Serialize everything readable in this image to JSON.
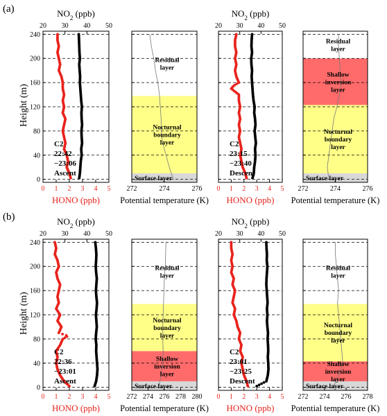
{
  "figure": {
    "panel_labels": [
      "(a)",
      "(b)"
    ],
    "colors": {
      "hono": "#e8231c",
      "no2": "#000000",
      "residual_layer": "#ffffff",
      "nocturnal_boundary_layer": "#ffff88",
      "shallow_inversion_layer": "#ff6b6b",
      "surface_layer": "#d8d8d8",
      "dashed_line": "#000000",
      "temperature_line": "#777777"
    }
  },
  "chart_data": [
    {
      "id": "a-ascent",
      "type": "line",
      "title": "",
      "panel_label": "(a)",
      "ylabel": "Height (m)",
      "ylim": [
        -5,
        245
      ],
      "yticks": [
        0,
        40,
        80,
        120,
        160,
        200,
        240
      ],
      "xlabel": "HONO (ppb)",
      "xlim": [
        0,
        5
      ],
      "xticks": [
        0,
        1,
        2,
        3,
        4,
        5
      ],
      "xlabel_top": "NO2 (ppb)",
      "xlim_top": [
        20,
        50
      ],
      "xticks_top": [
        20,
        30,
        40,
        50
      ],
      "annotation": [
        "C2",
        "22:42",
        "−23:06",
        "Ascent"
      ],
      "dashed_heights": [
        0,
        40,
        80,
        120,
        160,
        200,
        240
      ],
      "series": [
        {
          "name": "HONO",
          "axis": "bottom",
          "height": [
            2,
            10,
            20,
            30,
            40,
            50,
            60,
            70,
            80,
            90,
            100,
            110,
            120,
            130,
            140,
            150,
            160,
            170,
            180,
            190,
            200,
            210,
            220,
            230,
            240
          ],
          "values": [
            2.1,
            2.0,
            1.8,
            1.9,
            1.8,
            1.6,
            1.7,
            1.6,
            1.5,
            1.6,
            1.7,
            1.5,
            1.6,
            1.5,
            1.6,
            1.5,
            1.5,
            1.4,
            1.2,
            1.3,
            1.2,
            1.1,
            1.2,
            1.1,
            1.1
          ]
        },
        {
          "name": "NO2",
          "axis": "top",
          "height": [
            2,
            10,
            20,
            30,
            40,
            50,
            60,
            70,
            80,
            90,
            100,
            110,
            120,
            130,
            140,
            150,
            160,
            170,
            180,
            190,
            200,
            210,
            220,
            230,
            240
          ],
          "values": [
            36.5,
            36.8,
            37.0,
            37.2,
            37.6,
            37.4,
            37.8,
            37.6,
            37.5,
            37.8,
            37.6,
            37.5,
            37.7,
            37.4,
            37.2,
            37.0,
            36.8,
            36.9,
            36.7,
            36.5,
            36.8,
            36.6,
            36.5,
            36.4,
            36.3
          ]
        }
      ]
    },
    {
      "id": "a-ascent-layers",
      "type": "line",
      "title": "",
      "xlabel": "Potential temperature (K)",
      "xlim": [
        272,
        276
      ],
      "xticks": [
        272,
        274,
        276
      ],
      "ylim": [
        -5,
        245
      ],
      "dashed_heights": [
        0,
        40,
        80,
        120,
        160,
        200,
        240
      ],
      "layers": [
        {
          "name": "Surface layer",
          "bottom": -5,
          "top": 10,
          "kind": "surface_layer",
          "label": [
            "Surface layer"
          ]
        },
        {
          "name": "Nocturnal boundary layer",
          "bottom": 10,
          "top": 138,
          "kind": "nocturnal_boundary_layer",
          "label": [
            "Nocturnal",
            "boundary",
            "layer"
          ]
        },
        {
          "name": "Residual layer",
          "bottom": 138,
          "top": 245,
          "kind": "residual_layer",
          "label": [
            "Residual",
            "layer"
          ]
        }
      ],
      "series": [
        {
          "name": "Potential temperature",
          "height": [
            0,
            20,
            40,
            60,
            80,
            100,
            120,
            140,
            160,
            180,
            200,
            220,
            240
          ],
          "values": [
            274.55,
            274.3,
            274.1,
            273.9,
            273.8,
            273.8,
            273.75,
            273.7,
            273.6,
            273.45,
            273.35,
            273.2,
            273.1
          ]
        }
      ]
    },
    {
      "id": "a-descent",
      "type": "line",
      "title": "",
      "xlabel": "HONO (ppb)",
      "xlim": [
        0,
        5
      ],
      "xticks": [
        0,
        1,
        2,
        3,
        4,
        5
      ],
      "xlabel_top": "NO2 (ppb)",
      "xlim_top": [
        20,
        50
      ],
      "xticks_top": [
        20,
        30,
        40,
        50
      ],
      "ylim": [
        -5,
        245
      ],
      "annotation": [
        "C2",
        "23:15",
        "−23:40",
        "Descent"
      ],
      "dashed_heights": [
        0,
        40,
        80,
        120,
        160,
        200,
        240
      ],
      "series": [
        {
          "name": "HONO",
          "axis": "bottom",
          "height": [
            2,
            10,
            20,
            30,
            40,
            50,
            60,
            70,
            80,
            90,
            100,
            110,
            120,
            130,
            140,
            145,
            150,
            155,
            160,
            170,
            180,
            190,
            200,
            210,
            220,
            230,
            240
          ],
          "values": [
            2.2,
            2.1,
            1.9,
            1.8,
            1.7,
            1.8,
            1.7,
            1.6,
            1.7,
            1.6,
            1.7,
            1.6,
            1.7,
            1.6,
            1.6,
            1.3,
            1.0,
            1.2,
            1.6,
            1.4,
            1.3,
            1.4,
            1.3,
            1.4,
            1.3,
            1.3,
            1.4
          ]
        },
        {
          "name": "NO2",
          "axis": "top",
          "height": [
            2,
            10,
            20,
            30,
            40,
            50,
            60,
            70,
            80,
            90,
            100,
            110,
            120,
            130,
            140,
            150,
            160,
            170,
            180,
            190,
            200,
            210,
            220,
            230,
            240
          ],
          "values": [
            36.0,
            36.6,
            36.8,
            37.2,
            37.4,
            37.2,
            37.6,
            37.3,
            37.0,
            37.4,
            37.2,
            36.8,
            37.0,
            36.5,
            36.2,
            36.0,
            35.8,
            35.6,
            35.8,
            35.5,
            35.4,
            35.8,
            35.5,
            35.6,
            35.8
          ]
        }
      ]
    },
    {
      "id": "a-descent-layers",
      "type": "line",
      "title": "",
      "xlabel": "Potential temperature (K)",
      "xlim": [
        272,
        276
      ],
      "xticks": [
        272,
        274,
        276
      ],
      "ylim": [
        -5,
        245
      ],
      "dashed_heights": [
        0,
        40,
        80,
        120,
        160,
        200,
        240
      ],
      "layers": [
        {
          "name": "Surface layer",
          "bottom": -5,
          "top": 10,
          "kind": "surface_layer",
          "label": [
            "Surface layer"
          ]
        },
        {
          "name": "Nocturnal boundary layer",
          "bottom": 10,
          "top": 123,
          "kind": "nocturnal_boundary_layer",
          "label": [
            "Nocturnal",
            "boundary",
            "layer"
          ]
        },
        {
          "name": "Shallow inversion layer",
          "bottom": 123,
          "top": 200,
          "kind": "shallow_inversion_layer",
          "label": [
            "Shallow",
            "inversion",
            "layer"
          ]
        },
        {
          "name": "Residual layer",
          "bottom": 200,
          "top": 245,
          "kind": "residual_layer",
          "label": [
            "Residual",
            "layer"
          ]
        }
      ],
      "series": [
        {
          "name": "Potential temperature",
          "height": [
            0,
            20,
            40,
            60,
            80,
            100,
            120,
            140,
            160,
            180,
            200,
            220,
            240
          ],
          "values": [
            273.6,
            273.5,
            273.6,
            273.7,
            273.8,
            273.9,
            274.1,
            274.25,
            274.35,
            274.3,
            274.25,
            274.2,
            274.2
          ]
        }
      ]
    },
    {
      "id": "b-ascent",
      "type": "line",
      "title": "",
      "panel_label": "(b)",
      "ylabel": "Height (m)",
      "ylim": [
        -5,
        245
      ],
      "yticks": [
        0,
        40,
        80,
        120,
        160,
        200,
        240
      ],
      "xlabel": "HONO (ppb)",
      "xlim": [
        0,
        5
      ],
      "xticks": [
        0,
        1,
        2,
        3,
        4,
        5
      ],
      "xlabel_top": "NO2 (ppb)",
      "xlim_top": [
        20,
        50
      ],
      "xticks_top": [
        20,
        30,
        40,
        50
      ],
      "annotation": [
        "C2",
        "22:36",
        "−23:01",
        "Ascent"
      ],
      "dashed_heights": [
        0,
        40,
        80,
        120,
        160,
        200,
        240
      ],
      "series": [
        {
          "name": "HONO",
          "axis": "bottom",
          "height": [
            2,
            10,
            20,
            30,
            40,
            50,
            60,
            70,
            80,
            85,
            90,
            100,
            110,
            120,
            130,
            140,
            150,
            160,
            170,
            180,
            190,
            200,
            210,
            220,
            230,
            240
          ],
          "values": [
            2.0,
            1.6,
            1.3,
            1.1,
            1.0,
            1.1,
            1.0,
            1.3,
            1.5,
            1.9,
            1.2,
            1.4,
            1.1,
            1.3,
            1.0,
            1.2,
            1.1,
            1.2,
            1.3,
            1.1,
            1.0,
            1.2,
            1.1,
            0.9,
            1.0,
            0.9
          ]
        },
        {
          "name": "NO2",
          "axis": "top",
          "height": [
            2,
            10,
            20,
            30,
            40,
            50,
            60,
            70,
            80,
            90,
            100,
            110,
            120,
            130,
            140,
            150,
            160,
            170,
            180,
            190,
            200,
            210,
            220,
            230,
            240
          ],
          "values": [
            43.5,
            44.2,
            44.6,
            44.8,
            44.6,
            44.4,
            44.2,
            44.3,
            44.0,
            44.2,
            44.5,
            44.3,
            44.1,
            44.4,
            44.6,
            44.3,
            44.1,
            44.3,
            44.5,
            44.2,
            44.0,
            44.2,
            44.3,
            44.1,
            43.8
          ]
        }
      ]
    },
    {
      "id": "b-ascent-layers",
      "type": "line",
      "title": "",
      "xlabel": "Potential temperature (K)",
      "xlim": [
        272,
        280
      ],
      "xticks": [
        272,
        274,
        276,
        278,
        280
      ],
      "ylim": [
        -5,
        245
      ],
      "dashed_heights": [
        0,
        40,
        80,
        120,
        160,
        200,
        240
      ],
      "layers": [
        {
          "name": "Surface layer",
          "bottom": -5,
          "top": 10,
          "kind": "surface_layer",
          "label": [
            "Surface layer"
          ]
        },
        {
          "name": "Shallow inversion layer",
          "bottom": 10,
          "top": 60,
          "kind": "shallow_inversion_layer",
          "label": [
            "Shallow",
            "inversion",
            "layer"
          ]
        },
        {
          "name": "Nocturnal boundary layer",
          "bottom": 60,
          "top": 138,
          "kind": "nocturnal_boundary_layer",
          "label": [
            "Nocturnal",
            "boundary",
            "layer"
          ]
        },
        {
          "name": "Residual layer",
          "bottom": 138,
          "top": 245,
          "kind": "residual_layer",
          "label": [
            "Residual",
            "layer"
          ]
        }
      ],
      "series": [
        {
          "name": "Potential temperature",
          "height": [
            0,
            20,
            40,
            60,
            80,
            100,
            120,
            140,
            160,
            180,
            200,
            220,
            240
          ],
          "values": [
            275.3,
            275.6,
            275.8,
            275.85,
            275.8,
            275.8,
            275.85,
            275.9,
            275.95,
            276.0,
            276.1,
            276.15,
            276.2
          ]
        }
      ]
    },
    {
      "id": "b-descent",
      "type": "line",
      "title": "",
      "xlabel": "HONO (ppb)",
      "xlim": [
        0,
        5
      ],
      "xticks": [
        0,
        1,
        2,
        3,
        4,
        5
      ],
      "xlabel_top": "NO2 (ppb)",
      "xlim_top": [
        20,
        50
      ],
      "xticks_top": [
        20,
        30,
        40,
        50
      ],
      "ylim": [
        -5,
        245
      ],
      "annotation": [
        "C2",
        "23:01",
        "−23:25",
        "Descent"
      ],
      "dashed_heights": [
        0,
        40,
        80,
        120,
        160,
        200,
        240
      ],
      "series": [
        {
          "name": "HONO",
          "axis": "bottom",
          "height": [
            2,
            10,
            20,
            30,
            40,
            50,
            60,
            70,
            80,
            90,
            100,
            110,
            120,
            130,
            140,
            150,
            160,
            170,
            180,
            190,
            200,
            210,
            220,
            230,
            240
          ],
          "values": [
            2.3,
            2.2,
            2.0,
            1.9,
            1.8,
            1.9,
            1.7,
            1.8,
            1.6,
            1.7,
            1.5,
            1.4,
            1.2,
            1.3,
            1.1,
            1.2,
            1.3,
            1.1,
            1.2,
            1.0,
            1.1,
            1.0,
            1.1,
            1.0,
            1.0
          ]
        },
        {
          "name": "NO2",
          "axis": "top",
          "height": [
            2,
            10,
            20,
            30,
            40,
            50,
            60,
            70,
            80,
            90,
            100,
            110,
            120,
            130,
            140,
            150,
            160,
            170,
            180,
            190,
            200,
            210,
            220,
            230,
            240
          ],
          "values": [
            38.0,
            42.5,
            43.2,
            43.5,
            43.4,
            43.2,
            43.4,
            43.3,
            43.1,
            43.3,
            43.0,
            42.8,
            43.0,
            42.8,
            43.1,
            42.9,
            42.7,
            42.5,
            42.6,
            42.8,
            43.0,
            42.7,
            42.8,
            42.6,
            42.5
          ]
        }
      ]
    },
    {
      "id": "b-descent-layers",
      "type": "line",
      "title": "",
      "xlabel": "Potential temperature (K)",
      "xlim": [
        272,
        278
      ],
      "xticks": [
        272,
        274,
        276,
        278
      ],
      "ylim": [
        -5,
        245
      ],
      "dashed_heights": [
        0,
        40,
        80,
        120,
        160,
        200,
        240
      ],
      "layers": [
        {
          "name": "Surface layer",
          "bottom": -5,
          "top": 10,
          "kind": "surface_layer",
          "label": [
            "Surface layer"
          ]
        },
        {
          "name": "Shallow inversion layer",
          "bottom": 10,
          "top": 43,
          "kind": "shallow_inversion_layer",
          "label": [
            "Shallow",
            "inversion",
            "layer"
          ]
        },
        {
          "name": "Nocturnal boundary layer",
          "bottom": 43,
          "top": 138,
          "kind": "nocturnal_boundary_layer",
          "label": [
            "Nocturnal",
            "boundary",
            "layer"
          ]
        },
        {
          "name": "Residual layer",
          "bottom": 138,
          "top": 245,
          "kind": "residual_layer",
          "label": [
            "Residual",
            "layer"
          ]
        }
      ],
      "series": [
        {
          "name": "Potential temperature",
          "height": [
            0,
            20,
            40,
            60,
            80,
            100,
            120,
            140,
            160,
            180,
            200,
            220,
            240
          ],
          "values": [
            274.8,
            275.3,
            275.7,
            275.6,
            275.5,
            275.4,
            275.3,
            275.2,
            275.3,
            275.2,
            275.1,
            275.0,
            275.0
          ]
        }
      ]
    }
  ]
}
